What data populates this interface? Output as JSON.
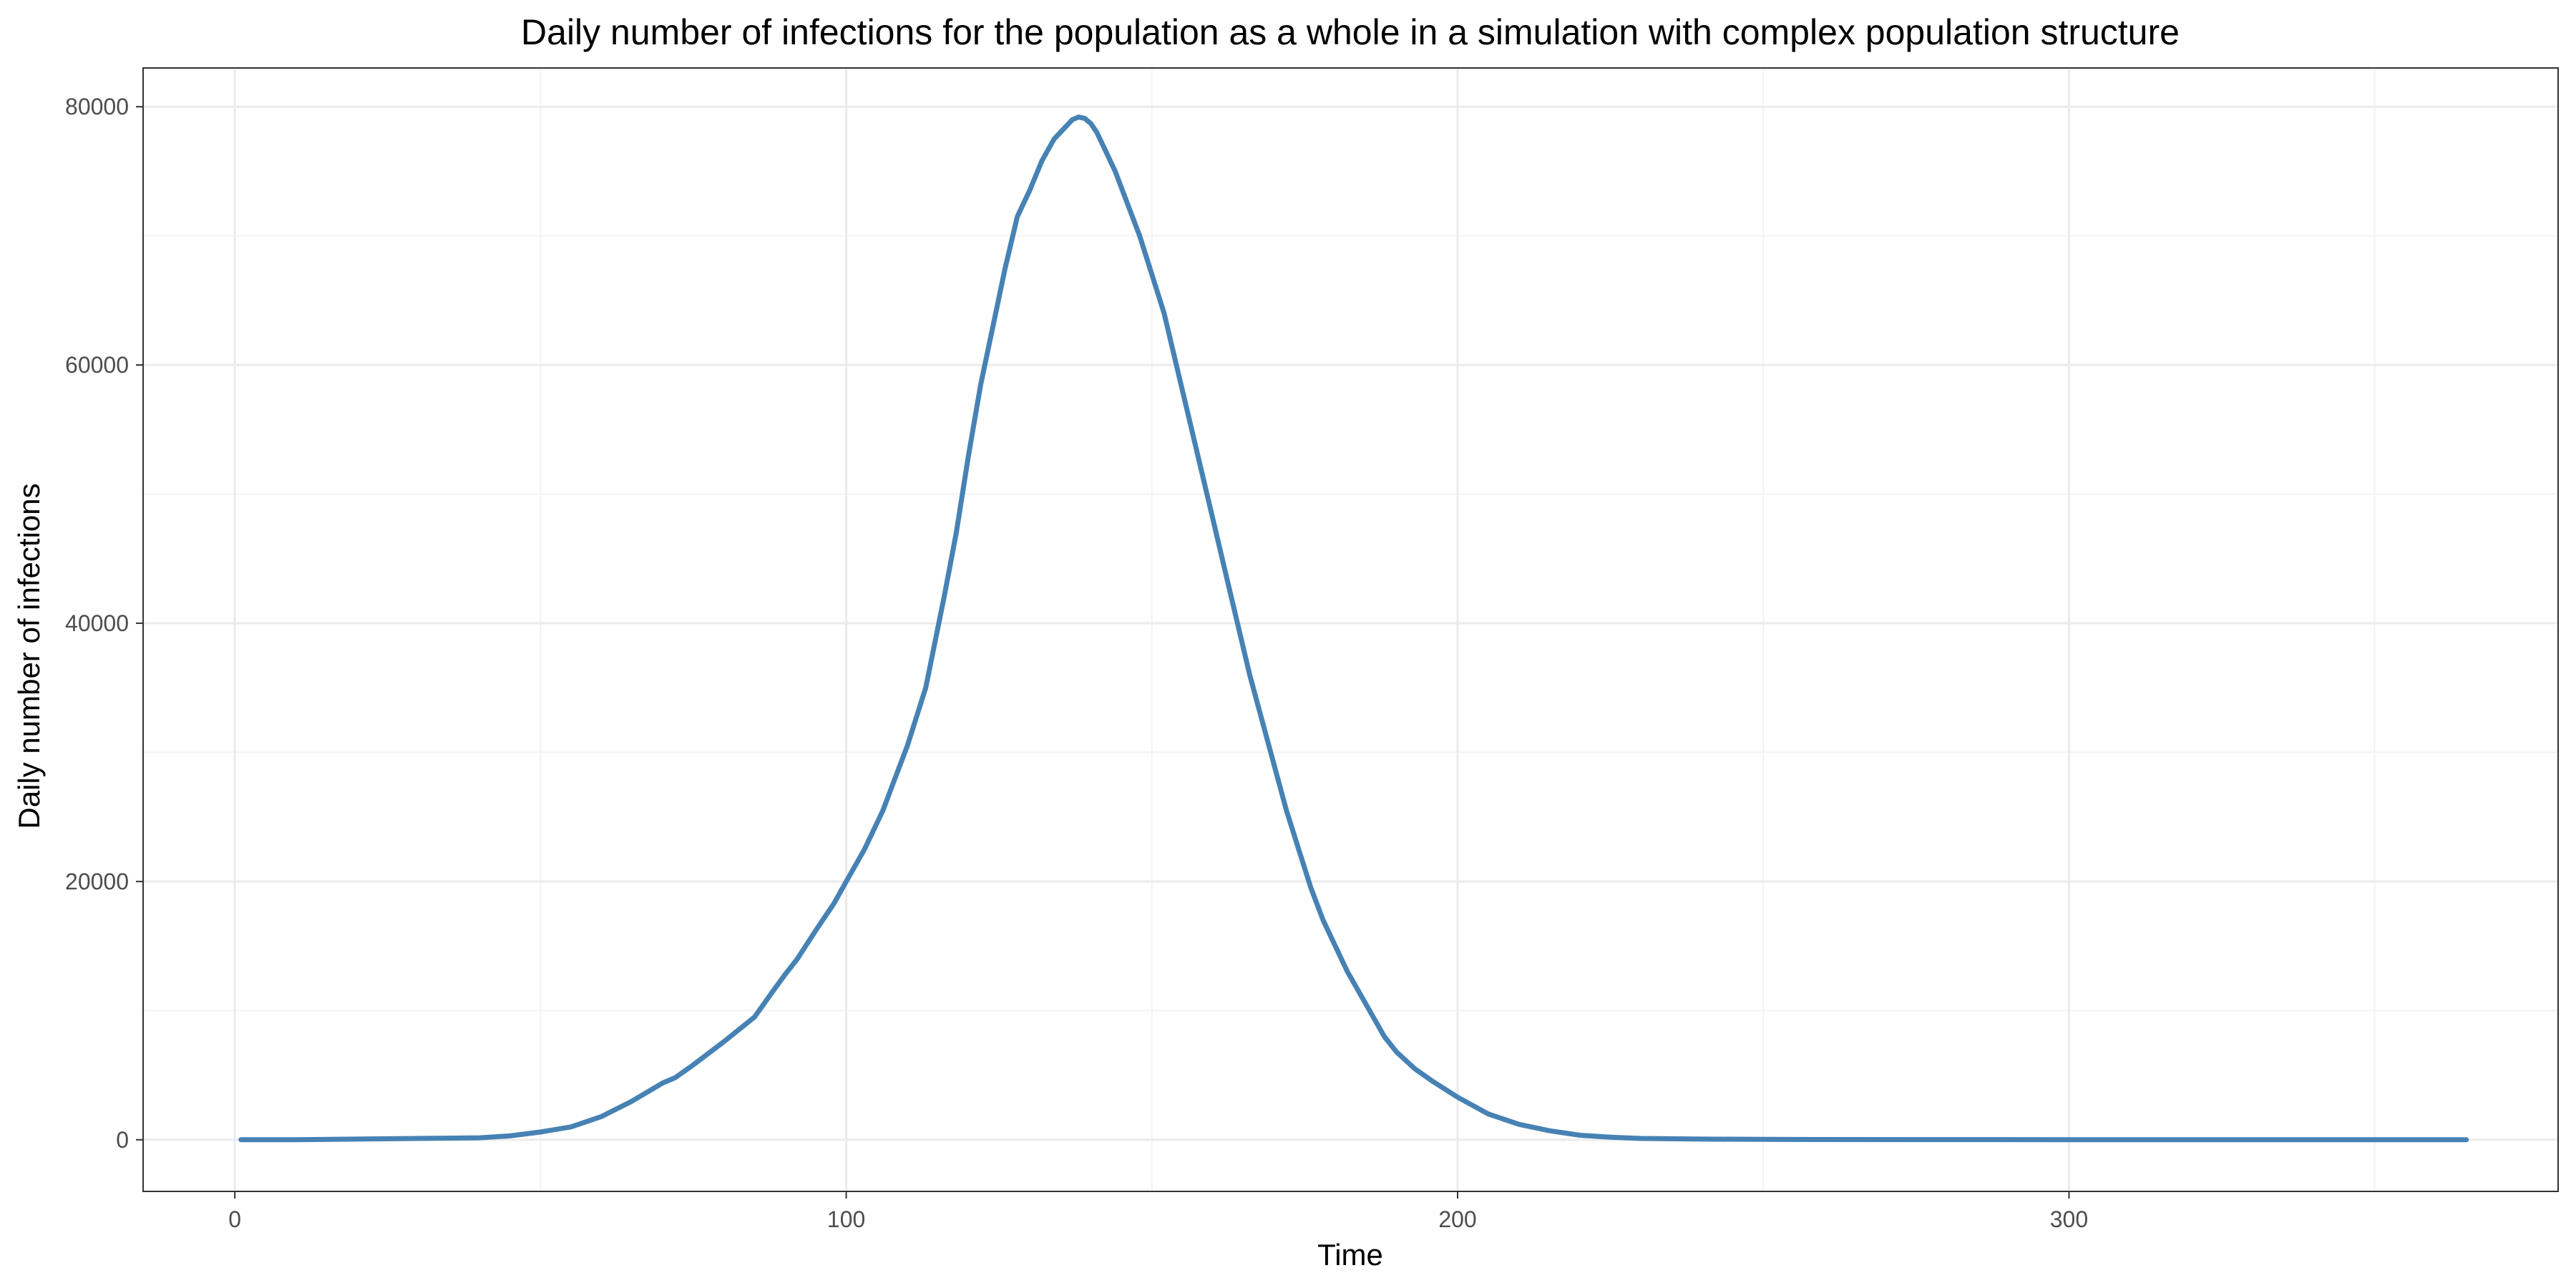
{
  "chart_data": {
    "type": "line",
    "title": "Daily number of infections for the population as a whole in a simulation with complex population structure",
    "xlabel": "Time",
    "ylabel": "Daily number of infections",
    "xlim": [
      -15,
      380
    ],
    "ylim": [
      -4000,
      83000
    ],
    "x_ticks": [
      0,
      100,
      200,
      300
    ],
    "y_ticks": [
      0,
      20000,
      40000,
      60000,
      80000
    ],
    "x_tick_labels": [
      "0",
      "100",
      "200",
      "300"
    ],
    "y_tick_labels": [
      "0",
      "20000",
      "40000",
      "60000",
      "80000"
    ],
    "grid": true,
    "legend": "none",
    "colors": {
      "line": "#4682B4",
      "grid_major": "#ebebeb",
      "grid_minor": "#f3f3f3",
      "panel_border": "#333333",
      "tick_text": "#4d4d4d"
    },
    "series": [
      {
        "x": [
          1,
          10,
          20,
          30,
          40,
          45,
          50,
          55,
          60,
          65,
          70,
          72,
          75,
          80,
          85,
          88,
          90,
          92,
          95,
          98,
          100,
          103,
          106,
          108,
          110,
          113,
          116,
          118,
          120,
          122,
          124,
          126,
          128,
          130,
          132,
          134,
          136,
          137,
          138,
          139,
          140,
          141,
          142,
          144,
          146,
          148,
          150,
          152,
          154,
          156,
          158,
          160,
          162,
          164,
          166,
          168,
          170,
          172,
          174,
          176,
          178,
          180,
          182,
          185,
          188,
          190,
          193,
          196,
          200,
          205,
          210,
          215,
          220,
          225,
          230,
          240,
          250,
          260,
          280,
          300,
          320,
          340,
          365
        ],
        "y": [
          0,
          0,
          50,
          100,
          150,
          300,
          600,
          1000,
          1800,
          3000,
          4400,
          4800,
          5800,
          7600,
          9500,
          11500,
          12800,
          14000,
          16200,
          18300,
          20000,
          22500,
          25500,
          28000,
          30500,
          35000,
          42000,
          47000,
          53000,
          58500,
          63000,
          67500,
          71500,
          73500,
          75800,
          77500,
          78500,
          79000,
          79200,
          79100,
          78700,
          78000,
          77000,
          75000,
          72500,
          70000,
          67000,
          64000,
          60000,
          56000,
          52000,
          48000,
          44000,
          40000,
          36000,
          32500,
          29000,
          25500,
          22500,
          19500,
          17000,
          15000,
          13000,
          10500,
          8000,
          6800,
          5500,
          4500,
          3300,
          2000,
          1200,
          700,
          350,
          200,
          100,
          50,
          30,
          20,
          10,
          5,
          0,
          0,
          0
        ]
      }
    ]
  }
}
